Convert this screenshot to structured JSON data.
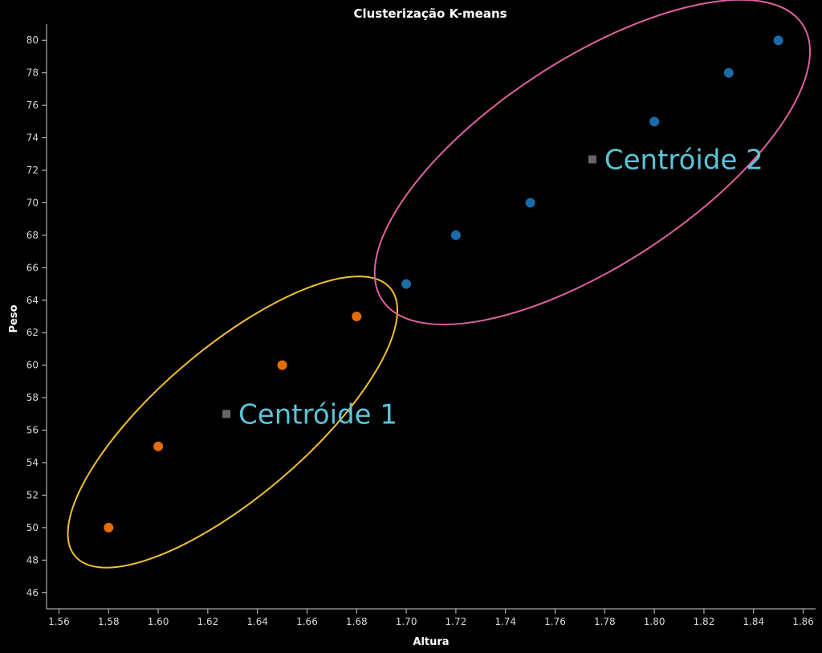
{
  "chart_data": {
    "type": "scatter",
    "title": "Clusterização K-means",
    "xlabel": "Altura",
    "ylabel": "Peso",
    "xlim": [
      1.555,
      1.865
    ],
    "ylim": [
      45,
      81
    ],
    "x_ticks": [
      "1.56",
      "1.58",
      "1.60",
      "1.62",
      "1.64",
      "1.66",
      "1.68",
      "1.70",
      "1.72",
      "1.74",
      "1.76",
      "1.78",
      "1.80",
      "1.82",
      "1.84",
      "1.86"
    ],
    "y_ticks": [
      "46",
      "48",
      "50",
      "52",
      "54",
      "56",
      "58",
      "60",
      "62",
      "64",
      "66",
      "68",
      "70",
      "72",
      "74",
      "76",
      "78",
      "80"
    ],
    "grid": false,
    "series": [
      {
        "color": "#e36d0a",
        "points": [
          {
            "x": 1.58,
            "y": 50
          },
          {
            "x": 1.6,
            "y": 55
          },
          {
            "x": 1.65,
            "y": 60
          },
          {
            "x": 1.68,
            "y": 63
          }
        ]
      },
      {
        "color": "#1c6ba9",
        "points": [
          {
            "x": 1.7,
            "y": 65
          },
          {
            "x": 1.72,
            "y": 68
          },
          {
            "x": 1.75,
            "y": 70
          },
          {
            "x": 1.8,
            "y": 75
          },
          {
            "x": 1.83,
            "y": 78
          },
          {
            "x": 1.85,
            "y": 80
          }
        ]
      }
    ],
    "centroids": [
      {
        "label": "Centróide 1",
        "x": 1.6275,
        "y": 57.0,
        "color": "#666666"
      },
      {
        "label": "Centróide 2",
        "x": 1.775,
        "y": 72.67,
        "color": "#666666"
      }
    ],
    "cluster_outline_colors": [
      "#f0c030",
      "#e060a0"
    ],
    "centroid_label_color": "#5bc4d9"
  }
}
